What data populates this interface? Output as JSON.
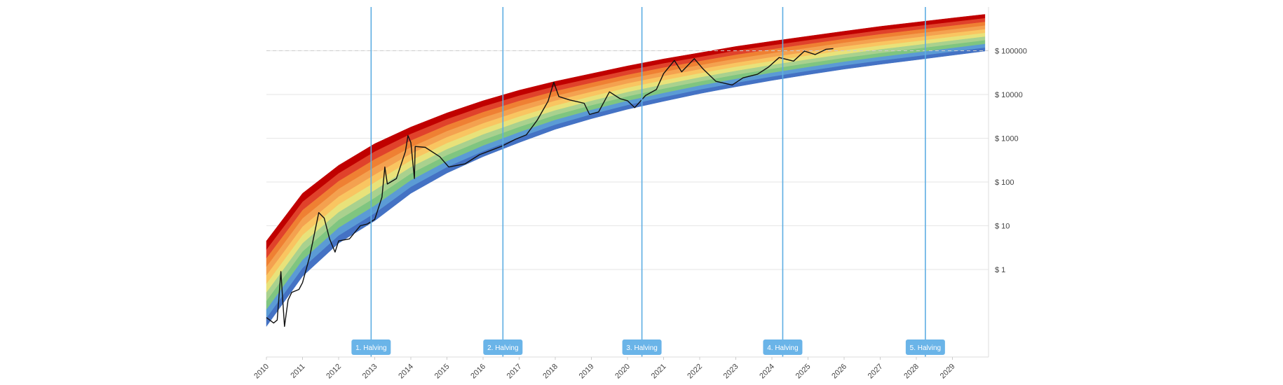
{
  "chart_data": {
    "type": "area",
    "title": "",
    "xlabel": "",
    "ylabel": "",
    "y_scale": "log",
    "xlim": [
      2010.0,
      2030.0
    ],
    "ylim": [
      0.01,
      1000000
    ],
    "grid": true,
    "x_tick_labels": [
      "2010",
      "2011",
      "2012",
      "2013",
      "2014",
      "2015",
      "2016",
      "2017",
      "2018",
      "2019",
      "2020",
      "2021",
      "2022",
      "2023",
      "2024",
      "2025",
      "2026",
      "2027",
      "2028",
      "2029"
    ],
    "x_ticks": [
      2010,
      2011,
      2012,
      2013,
      2014,
      2015,
      2016,
      2017,
      2018,
      2019,
      2020,
      2021,
      2022,
      2023,
      2024,
      2025,
      2026,
      2027,
      2028,
      2029
    ],
    "y_ticks": [
      1,
      10,
      100,
      1000,
      10000,
      100000
    ],
    "y_tick_labels": [
      "$ 1",
      "$ 10",
      "$ 100",
      "$ 1000",
      "$ 10000",
      "$ 100000"
    ],
    "reference_line": {
      "value": 100000,
      "style": "dashed"
    },
    "rainbow": {
      "band_colors": [
        "#4472c4",
        "#5b9bd5",
        "#7fc580",
        "#a9d18e",
        "#e8e27a",
        "#f9c561",
        "#f4a14f",
        "#ef8033",
        "#e0422b",
        "#c00000"
      ],
      "lower_bound": [
        {
          "x": 2010.0,
          "y": 0.05
        },
        {
          "x": 2011.0,
          "y": 0.7
        },
        {
          "x": 2012.0,
          "y": 4
        },
        {
          "x": 2013.0,
          "y": 13
        },
        {
          "x": 2014.0,
          "y": 55
        },
        {
          "x": 2015.0,
          "y": 160
        },
        {
          "x": 2016.0,
          "y": 380
        },
        {
          "x": 2017.0,
          "y": 800
        },
        {
          "x": 2018.0,
          "y": 1600
        },
        {
          "x": 2019.0,
          "y": 2800
        },
        {
          "x": 2020.0,
          "y": 4600
        },
        {
          "x": 2021.0,
          "y": 7000
        },
        {
          "x": 2022.0,
          "y": 10500
        },
        {
          "x": 2023.0,
          "y": 15000
        },
        {
          "x": 2024.0,
          "y": 21000
        },
        {
          "x": 2025.0,
          "y": 28500
        },
        {
          "x": 2026.0,
          "y": 38000
        },
        {
          "x": 2027.0,
          "y": 49000
        },
        {
          "x": 2028.0,
          "y": 62000
        },
        {
          "x": 2029.0,
          "y": 79000
        },
        {
          "x": 2029.9,
          "y": 98000
        }
      ],
      "upper_bound": [
        {
          "x": 2010.0,
          "y": 4.5
        },
        {
          "x": 2011.0,
          "y": 55
        },
        {
          "x": 2012.0,
          "y": 240
        },
        {
          "x": 2013.0,
          "y": 750
        },
        {
          "x": 2014.0,
          "y": 1800
        },
        {
          "x": 2015.0,
          "y": 3800
        },
        {
          "x": 2016.0,
          "y": 7200
        },
        {
          "x": 2017.0,
          "y": 12500
        },
        {
          "x": 2018.0,
          "y": 20000
        },
        {
          "x": 2019.0,
          "y": 30000
        },
        {
          "x": 2020.0,
          "y": 45000
        },
        {
          "x": 2021.0,
          "y": 65000
        },
        {
          "x": 2022.0,
          "y": 90000
        },
        {
          "x": 2023.0,
          "y": 125000
        },
        {
          "x": 2024.0,
          "y": 165000
        },
        {
          "x": 2025.0,
          "y": 215000
        },
        {
          "x": 2026.0,
          "y": 280000
        },
        {
          "x": 2027.0,
          "y": 360000
        },
        {
          "x": 2028.0,
          "y": 450000
        },
        {
          "x": 2029.0,
          "y": 560000
        },
        {
          "x": 2029.9,
          "y": 680000
        }
      ]
    },
    "series": [
      {
        "values": [
          {
            "x": 2010.0,
            "y": 0.08
          },
          {
            "x": 2010.2,
            "y": 0.06
          },
          {
            "x": 2010.3,
            "y": 0.07
          },
          {
            "x": 2010.4,
            "y": 0.9
          },
          {
            "x": 2010.5,
            "y": 0.05
          },
          {
            "x": 2010.6,
            "y": 0.2
          },
          {
            "x": 2010.7,
            "y": 0.3
          },
          {
            "x": 2010.9,
            "y": 0.35
          },
          {
            "x": 2011.0,
            "y": 0.5
          },
          {
            "x": 2011.2,
            "y": 2
          },
          {
            "x": 2011.45,
            "y": 20
          },
          {
            "x": 2011.6,
            "y": 15
          },
          {
            "x": 2011.75,
            "y": 5
          },
          {
            "x": 2011.9,
            "y": 2.5
          },
          {
            "x": 2012.0,
            "y": 4.5
          },
          {
            "x": 2012.3,
            "y": 5
          },
          {
            "x": 2012.6,
            "y": 10
          },
          {
            "x": 2012.8,
            "y": 11
          },
          {
            "x": 2013.0,
            "y": 14
          },
          {
            "x": 2013.2,
            "y": 45
          },
          {
            "x": 2013.28,
            "y": 220
          },
          {
            "x": 2013.35,
            "y": 90
          },
          {
            "x": 2013.6,
            "y": 120
          },
          {
            "x": 2013.85,
            "y": 500
          },
          {
            "x": 2013.92,
            "y": 1150
          },
          {
            "x": 2014.0,
            "y": 800
          },
          {
            "x": 2014.1,
            "y": 120
          },
          {
            "x": 2014.12,
            "y": 650
          },
          {
            "x": 2014.4,
            "y": 620
          },
          {
            "x": 2014.8,
            "y": 380
          },
          {
            "x": 2015.05,
            "y": 220
          },
          {
            "x": 2015.5,
            "y": 260
          },
          {
            "x": 2015.9,
            "y": 420
          },
          {
            "x": 2016.5,
            "y": 650
          },
          {
            "x": 2016.9,
            "y": 950
          },
          {
            "x": 2017.2,
            "y": 1200
          },
          {
            "x": 2017.5,
            "y": 2600
          },
          {
            "x": 2017.8,
            "y": 7000
          },
          {
            "x": 2017.96,
            "y": 19000
          },
          {
            "x": 2018.1,
            "y": 9000
          },
          {
            "x": 2018.4,
            "y": 7500
          },
          {
            "x": 2018.8,
            "y": 6300
          },
          {
            "x": 2018.95,
            "y": 3500
          },
          {
            "x": 2019.2,
            "y": 4000
          },
          {
            "x": 2019.5,
            "y": 11500
          },
          {
            "x": 2019.8,
            "y": 8000
          },
          {
            "x": 2020.0,
            "y": 7200
          },
          {
            "x": 2020.2,
            "y": 5000
          },
          {
            "x": 2020.5,
            "y": 9500
          },
          {
            "x": 2020.8,
            "y": 13000
          },
          {
            "x": 2021.0,
            "y": 30000
          },
          {
            "x": 2021.3,
            "y": 60000
          },
          {
            "x": 2021.5,
            "y": 33000
          },
          {
            "x": 2021.85,
            "y": 66000
          },
          {
            "x": 2022.1,
            "y": 38000
          },
          {
            "x": 2022.45,
            "y": 20000
          },
          {
            "x": 2022.9,
            "y": 16500
          },
          {
            "x": 2023.2,
            "y": 24000
          },
          {
            "x": 2023.6,
            "y": 29000
          },
          {
            "x": 2023.9,
            "y": 42000
          },
          {
            "x": 2024.2,
            "y": 70000
          },
          {
            "x": 2024.6,
            "y": 58000
          },
          {
            "x": 2024.9,
            "y": 98000
          },
          {
            "x": 2025.2,
            "y": 82000
          },
          {
            "x": 2025.5,
            "y": 108000
          },
          {
            "x": 2025.7,
            "y": 112000
          }
        ]
      }
    ],
    "halvings": [
      {
        "label": "1. Halving",
        "x": 2012.9
      },
      {
        "label": "2. Halving",
        "x": 2016.55
      },
      {
        "label": "3. Halving",
        "x": 2020.4
      },
      {
        "label": "4. Halving",
        "x": 2024.3
      },
      {
        "label": "5. Halving",
        "x": 2028.25
      }
    ],
    "colors": {
      "price_line": "#111111",
      "halving_line": "#5dade2",
      "halving_badge": "#6ab4e8",
      "grid": "#e6e6e6",
      "reference_line": "#cccccc"
    }
  }
}
